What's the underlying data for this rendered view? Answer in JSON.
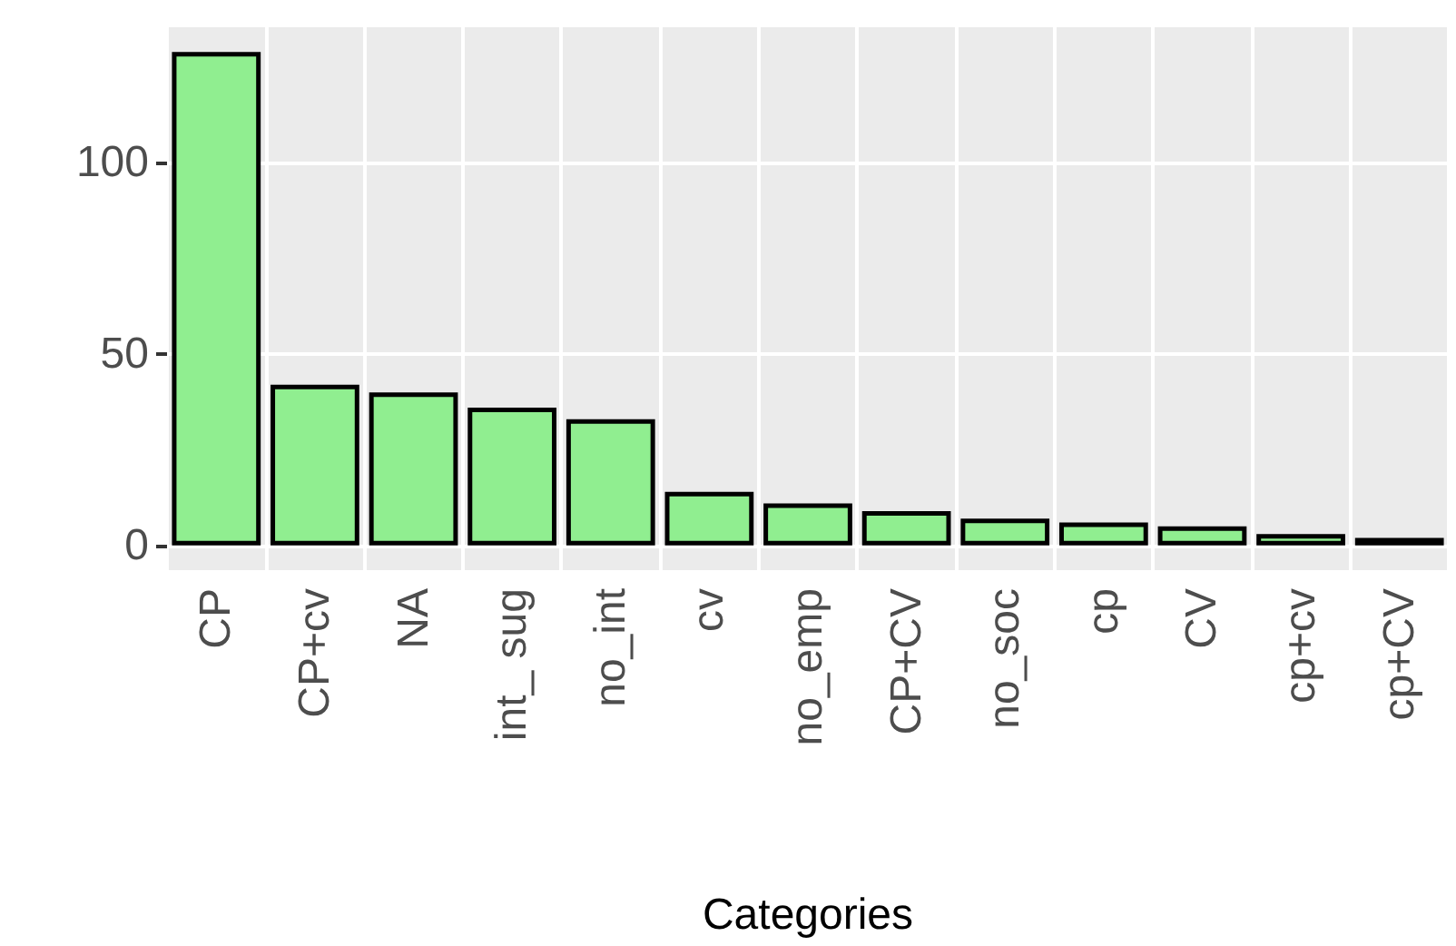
{
  "chart_data": {
    "type": "bar",
    "xlabel": "Categories",
    "categories": [
      "CP",
      "CP+cv",
      "NA",
      "int_ sug",
      "no_int",
      "cv",
      "no_emp",
      "CP+CV",
      "no_soc",
      "cp",
      "CV",
      "cp+cv",
      "cp+CV"
    ],
    "values": [
      129,
      42,
      40,
      36,
      33,
      14,
      11,
      9,
      7,
      6,
      5,
      3,
      2
    ],
    "color": "#90ee90",
    "ylim": [
      -6.45,
      135.45
    ],
    "yticks": [
      0,
      50,
      100
    ],
    "grid": true
  }
}
